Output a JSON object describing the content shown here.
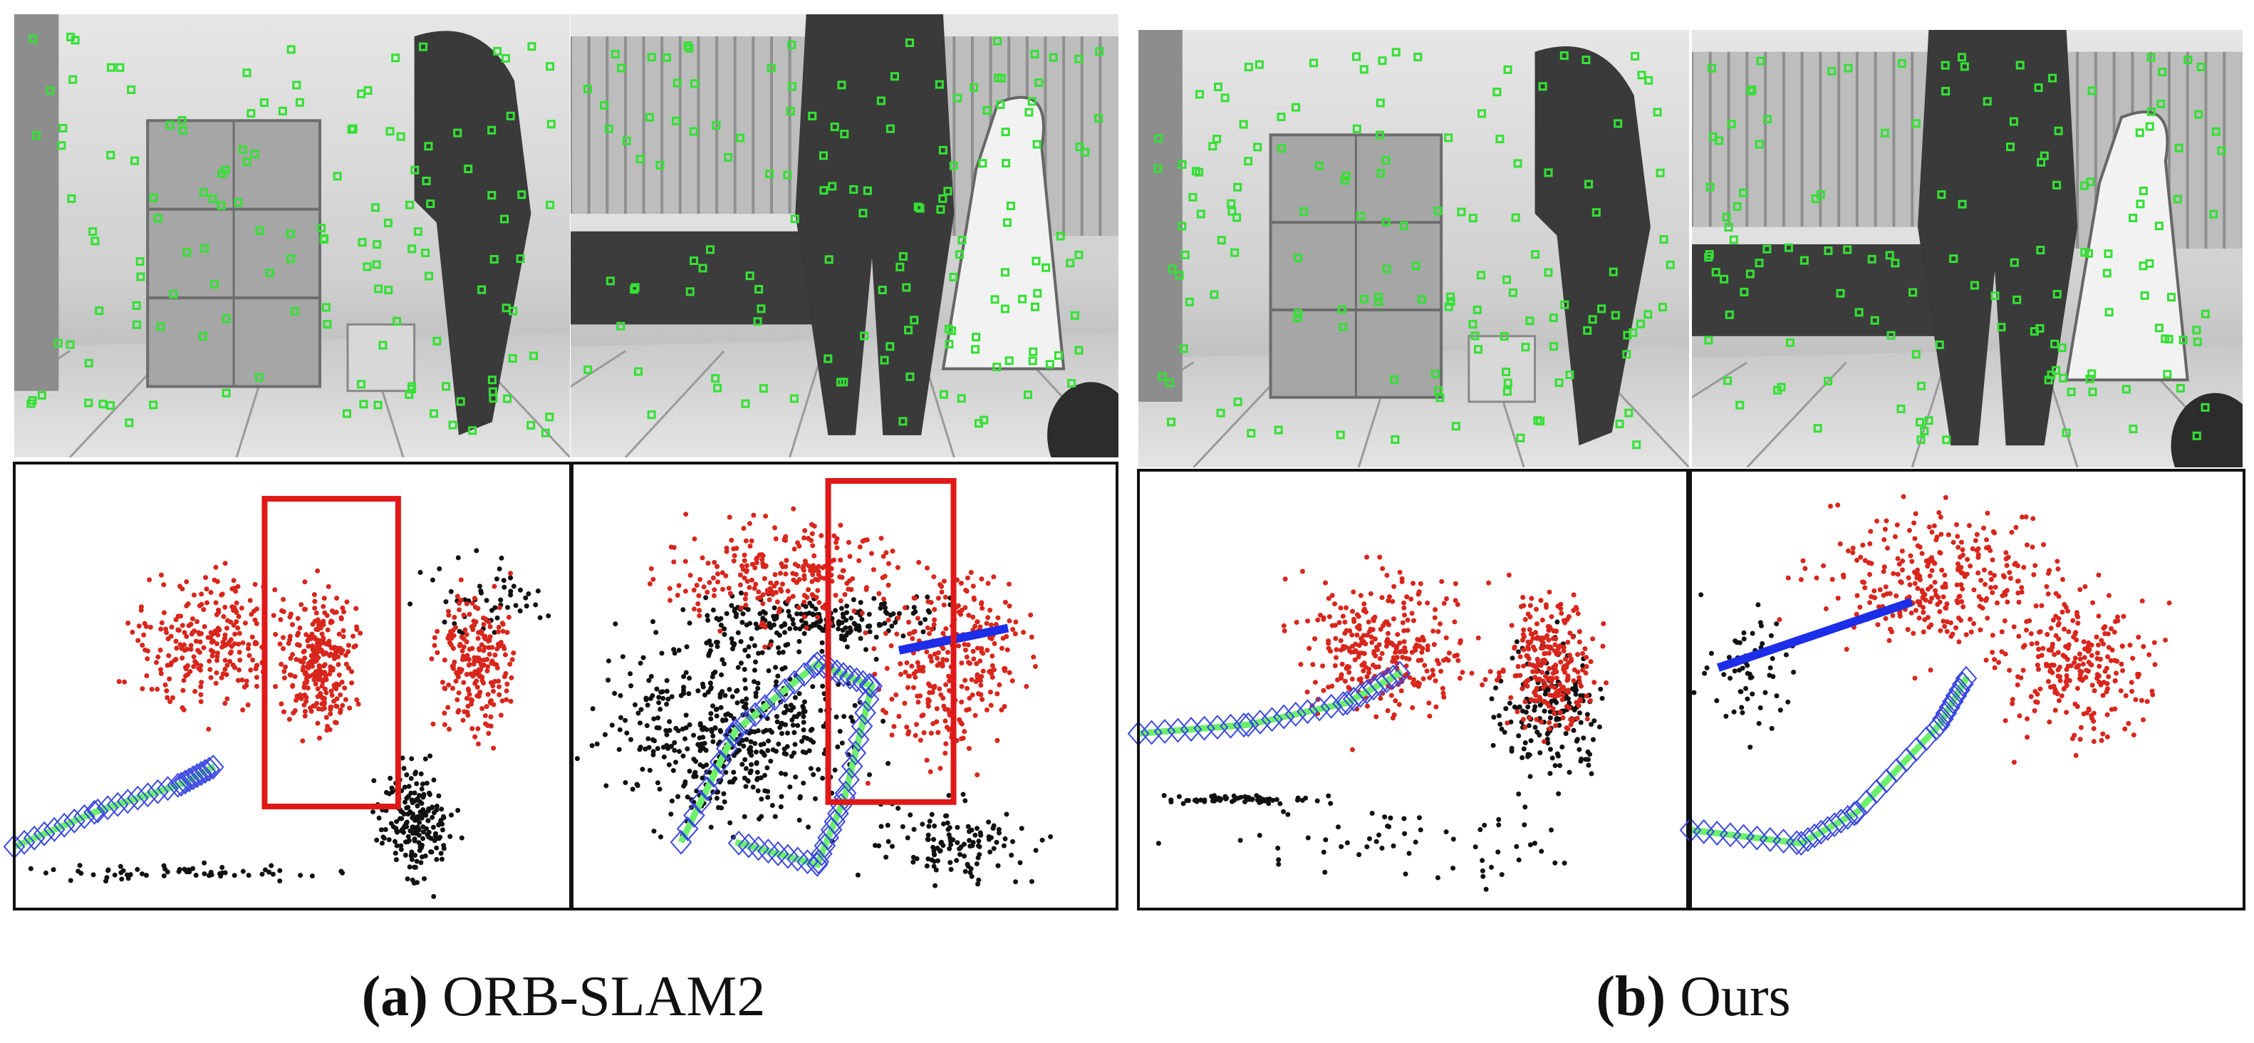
{
  "panels": [
    {
      "label": "(a)",
      "caption": "ORB-SLAM2"
    },
    {
      "label": "(b)",
      "caption": "Ours"
    }
  ]
}
